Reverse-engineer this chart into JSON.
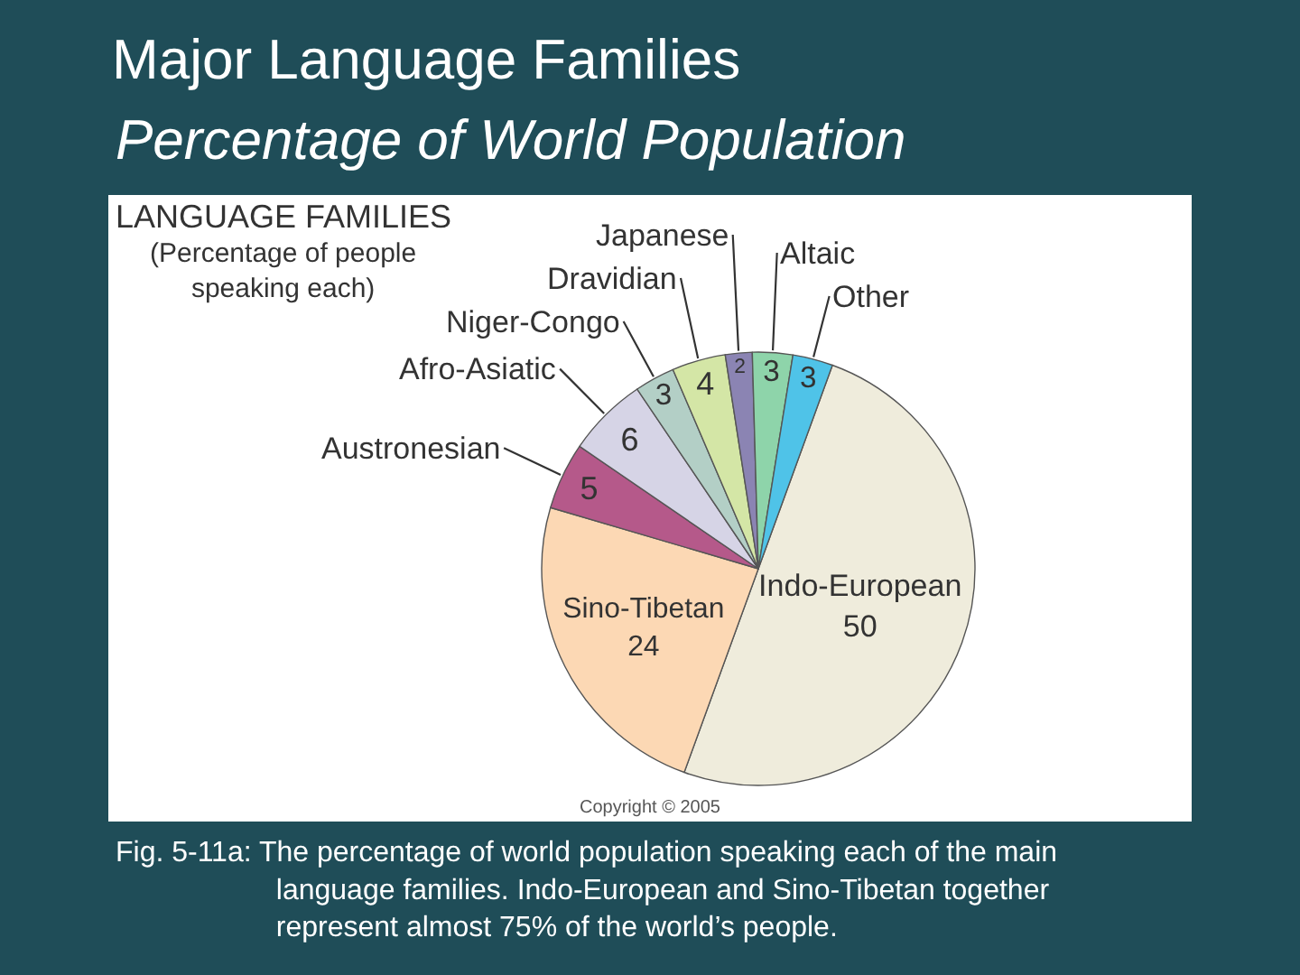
{
  "chart_data": {
    "type": "pie",
    "title": "Major Language Families",
    "subtitle": "Percentage of World Population",
    "categories": [
      "Indo-European",
      "Sino-Tibetan",
      "Austronesian",
      "Afro-Asiatic",
      "Niger-Congo",
      "Dravidian",
      "Japanese",
      "Altaic",
      "Other"
    ],
    "values": [
      50,
      24,
      5,
      6,
      3,
      4,
      2,
      3,
      3
    ],
    "colors": [
      "#efecdc",
      "#fcd8b4",
      "#b5598a",
      "#d6d4e6",
      "#b3cfc6",
      "#d4e6a6",
      "#8b84b3",
      "#8ed4aa",
      "#4fc3e8"
    ],
    "data_labels": true,
    "annotations": [
      "LANGUAGE FAMILIES",
      "(Percentage of people\nspeaking each)",
      "Copyright © 2005",
      "Fig. 5-11a: The percentage of world population speaking each of the main\nlanguage families. Indo-European and Sino-Tibetan together\nrepresent almost 75% of the world’s people."
    ]
  }
}
